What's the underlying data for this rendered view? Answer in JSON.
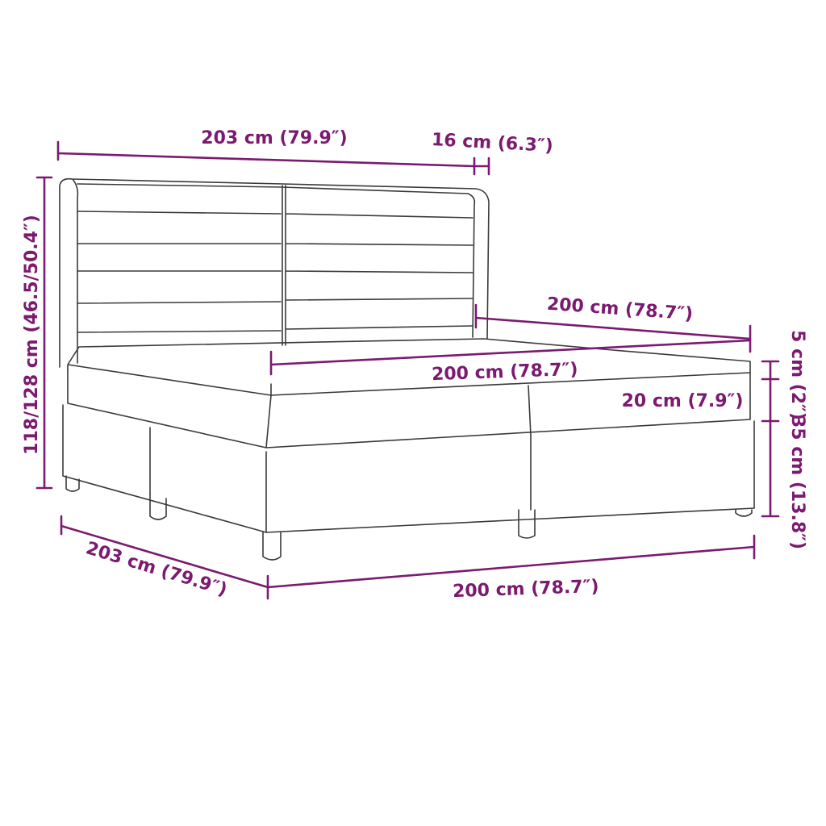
{
  "colors": {
    "dimension": "#7b1a70",
    "outline": "#3a3a3a",
    "background": "#ffffff"
  },
  "dimensions": {
    "total_length": "203 cm (79.9″)",
    "headboard_depth": "16 cm (6.3″)",
    "total_height": "118/128 cm (46.5/50.4″)",
    "mattress_length": "200 cm (78.7″)",
    "mattress_width": "200 cm (78.7″)",
    "topper_height": "5 cm (2″)",
    "mattress_height": "20 cm (7.9″)",
    "base_height": "35 cm (13.8″)",
    "side_length": "203 cm (79.9″)",
    "front_width": "200 cm (78.7″)"
  }
}
